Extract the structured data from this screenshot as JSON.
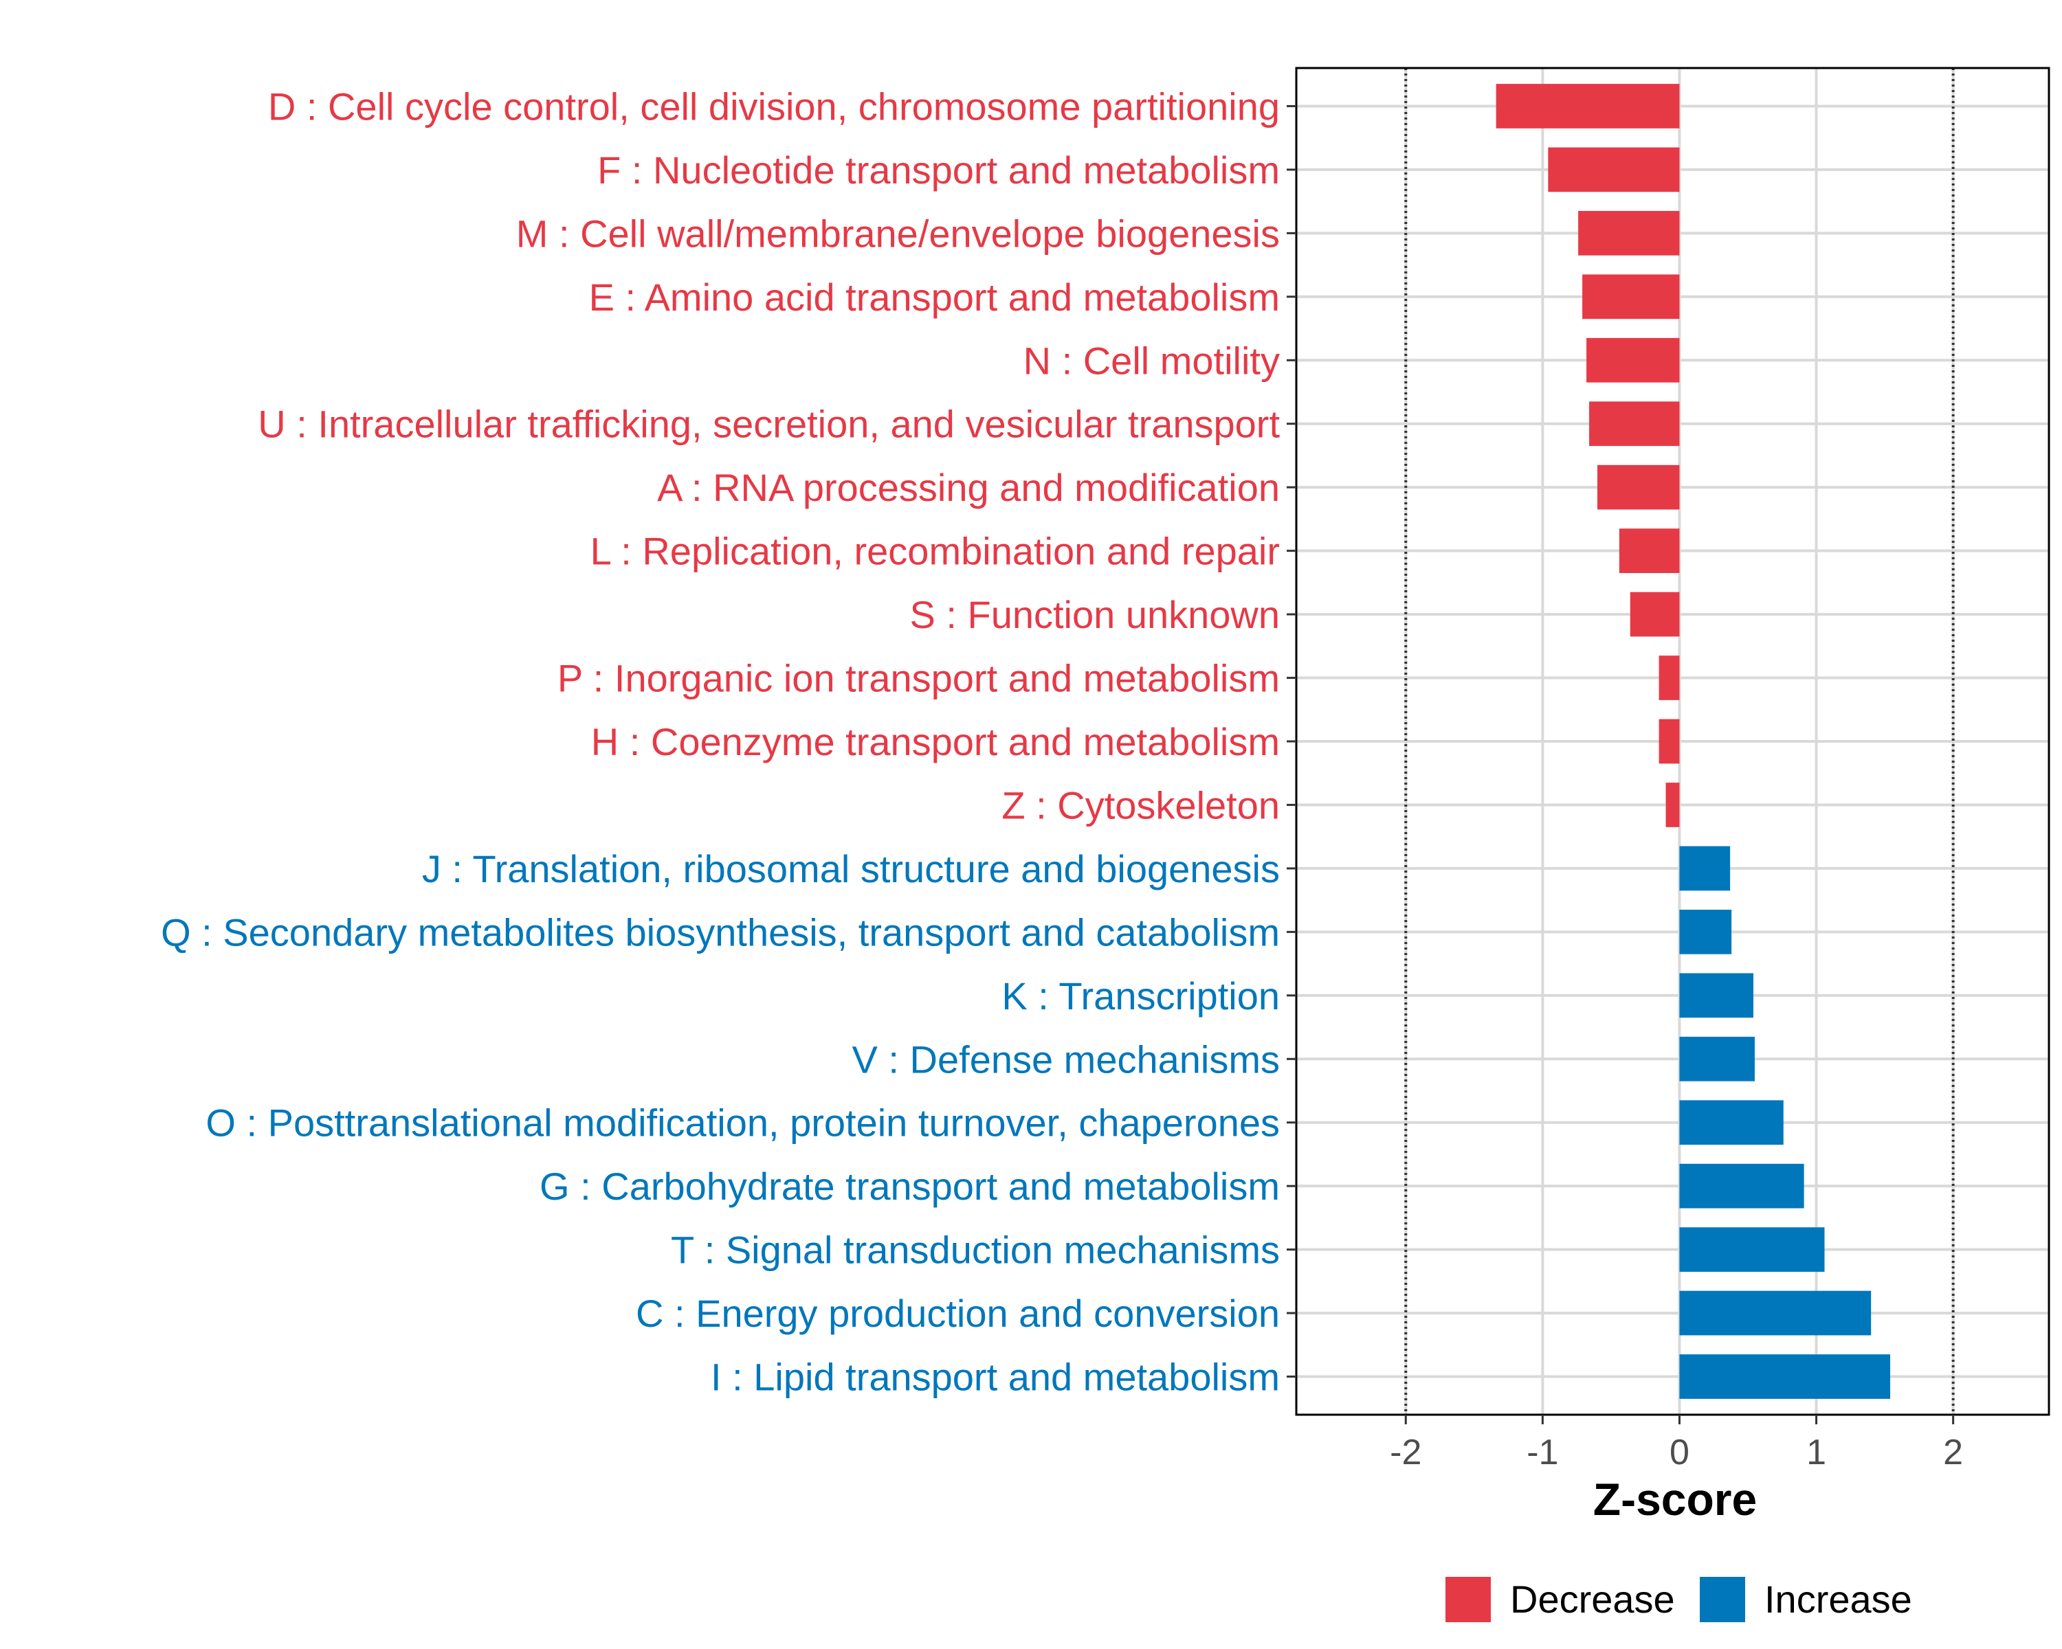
{
  "chart_data": {
    "type": "bar",
    "orientation": "horizontal",
    "title": "",
    "xlabel": "Z-score",
    "ylabel": "",
    "xlim": [
      -2.8,
      2.7
    ],
    "xticks": [
      -2,
      -1,
      0,
      1,
      2
    ],
    "xtick_labels": [
      "-2",
      "-1",
      "0",
      "1",
      "2"
    ],
    "reference_lines": [
      -2,
      2
    ],
    "grid": true,
    "categories": [
      "I : Lipid transport and metabolism",
      "C : Energy production and conversion",
      "T : Signal transduction mechanisms",
      "G : Carbohydrate transport and metabolism",
      "O : Posttranslational modification, protein turnover, chaperones",
      "V : Defense mechanisms",
      "K : Transcription",
      "Q : Secondary metabolites biosynthesis, transport and catabolism",
      "J : Translation, ribosomal structure and biogenesis",
      "Z : Cytoskeleton",
      "H : Coenzyme transport and metabolism",
      "P : Inorganic ion transport and metabolism",
      "S : Function unknown",
      "L : Replication, recombination and repair",
      "A : RNA processing and modification",
      "U : Intracellular trafficking, secretion, and vesicular transport",
      "N : Cell motility",
      "E : Amino acid transport and metabolism",
      "M : Cell wall/membrane/envelope biogenesis",
      "F : Nucleotide transport and metabolism",
      "D : Cell cycle control, cell division, chromosome partitioning"
    ],
    "values": [
      1.54,
      1.4,
      1.06,
      0.91,
      0.76,
      0.55,
      0.54,
      0.38,
      0.37,
      -0.1,
      -0.15,
      -0.15,
      -0.36,
      -0.44,
      -0.6,
      -0.66,
      -0.68,
      -0.71,
      -0.74,
      -0.96,
      -1.34
    ],
    "groups": [
      "Increase",
      "Increase",
      "Increase",
      "Increase",
      "Increase",
      "Increase",
      "Increase",
      "Increase",
      "Increase",
      "Decrease",
      "Decrease",
      "Decrease",
      "Decrease",
      "Decrease",
      "Decrease",
      "Decrease",
      "Decrease",
      "Decrease",
      "Decrease",
      "Decrease",
      "Decrease"
    ],
    "legend": {
      "position": "bottom",
      "entries": [
        {
          "name": "Decrease",
          "color": "#E63946"
        },
        {
          "name": "Increase",
          "color": "#0077BB"
        }
      ]
    },
    "colors": {
      "Decrease": "#E63946",
      "Increase": "#0077BB",
      "grid": "#D9D9D9",
      "frame": "#000000",
      "reference_line": "#333333"
    }
  }
}
